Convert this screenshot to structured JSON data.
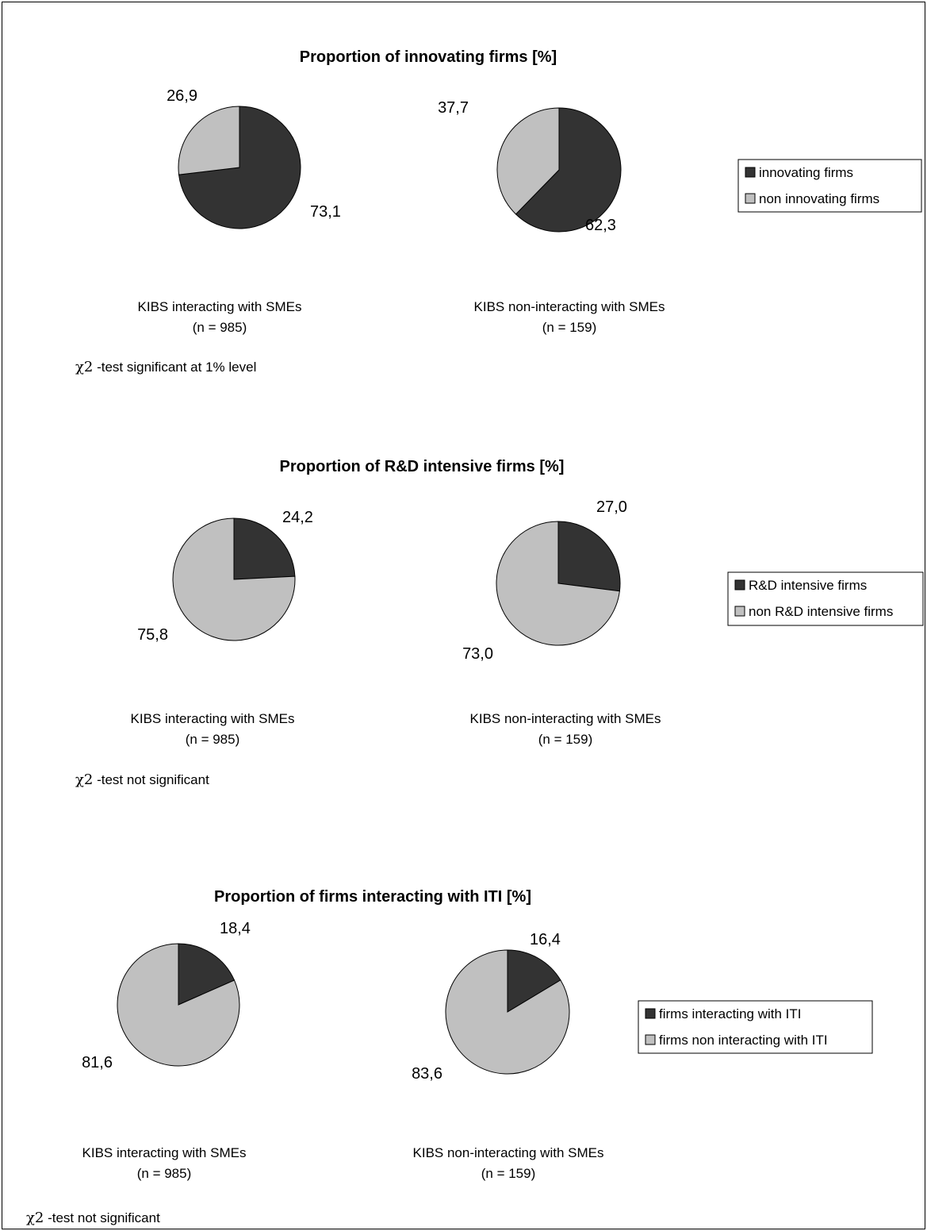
{
  "colors": {
    "dark": "#333333",
    "light": "#c0c0c0",
    "stroke": "#000000"
  },
  "chart_data": [
    {
      "type": "pie",
      "title": "Proportion of innovating firms [%]",
      "legend": [
        "innovating firms",
        "non innovating firms"
      ],
      "pies": [
        {
          "caption": "KIBS interacting with SMEs",
          "n_label": "(n = 985)",
          "slices": [
            {
              "label": "73,1",
              "value": 73.1
            },
            {
              "label": "26,9",
              "value": 26.9
            }
          ]
        },
        {
          "caption": "KIBS non-interacting with SMEs",
          "n_label": "(n = 159)",
          "slices": [
            {
              "label": "62,3",
              "value": 62.3
            },
            {
              "label": "37,7",
              "value": 37.7
            }
          ]
        }
      ],
      "note_symbol": "χ2",
      "note": " -test significant at 1% level"
    },
    {
      "type": "pie",
      "title": "Proportion of R&D intensive firms [%]",
      "legend": [
        "R&D intensive firms",
        "non R&D intensive firms"
      ],
      "pies": [
        {
          "caption": "KIBS interacting with SMEs",
          "n_label": "(n = 985)",
          "slices": [
            {
              "label": "24,2",
              "value": 24.2
            },
            {
              "label": "75,8",
              "value": 75.8
            }
          ]
        },
        {
          "caption": "KIBS non-interacting with SMEs",
          "n_label": "(n = 159)",
          "slices": [
            {
              "label": "27,0",
              "value": 27.0
            },
            {
              "label": "73,0",
              "value": 73.0
            }
          ]
        }
      ],
      "note_symbol": "χ2",
      "note": " -test not significant"
    },
    {
      "type": "pie",
      "title": "Proportion of firms interacting with ITI [%]",
      "legend": [
        "firms interacting with ITI",
        "firms non interacting with ITI"
      ],
      "pies": [
        {
          "caption": "KIBS interacting with SMEs",
          "n_label": "(n = 985)",
          "slices": [
            {
              "label": "18,4",
              "value": 18.4
            },
            {
              "label": "81,6",
              "value": 81.6
            }
          ]
        },
        {
          "caption": "KIBS non-interacting with SMEs",
          "n_label": "(n = 159)",
          "slices": [
            {
              "label": "16,4",
              "value": 16.4
            },
            {
              "label": "83,6",
              "value": 83.6
            }
          ]
        }
      ],
      "note_symbol": "χ2",
      "note": " -test not significant"
    }
  ]
}
